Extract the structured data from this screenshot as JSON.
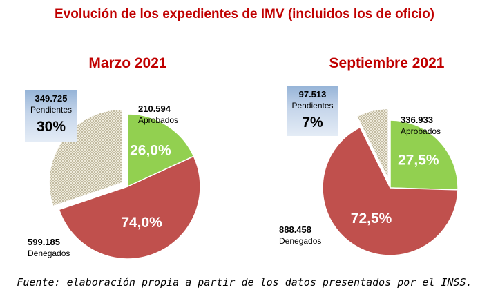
{
  "chart_data": {
    "title": "Evolución de los expedientes de IMV (incluidos los de oficio)",
    "source": "Fuente: elaboración propia a partir de los datos presentados por el INSS.",
    "charts": [
      {
        "type": "pie",
        "title": "Marzo 2021",
        "slices": [
          {
            "label": "Aprobados",
            "value": 210594,
            "value_text": "210.594",
            "pct_text": "26,0%",
            "color": "#92d050"
          },
          {
            "label": "Denegados",
            "value": 599185,
            "value_text": "599.185",
            "pct_text": "74,0%",
            "color": "#c0504d"
          },
          {
            "label": "Pendientes",
            "value": 349725,
            "value_text": "349.725",
            "pct_text": "30%",
            "color": "#ddd9c3"
          }
        ]
      },
      {
        "type": "pie",
        "title": "Septiembre 2021",
        "slices": [
          {
            "label": "Aprobados",
            "value": 336933,
            "value_text": "336.933",
            "pct_text": "27,5%",
            "color": "#92d050"
          },
          {
            "label": "Denegados",
            "value": 888458,
            "value_text": "888.458",
            "pct_text": "72,5%",
            "color": "#c0504d"
          },
          {
            "label": "Pendientes",
            "value": 97513,
            "value_text": "97.513",
            "pct_text": "7%",
            "color": "#ddd9c3"
          }
        ]
      }
    ]
  }
}
